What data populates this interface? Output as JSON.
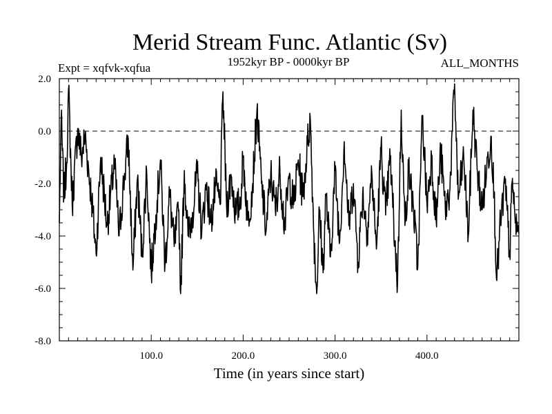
{
  "chart_data": {
    "type": "line",
    "title": "Merid Stream Func. Atlantic (Sv)",
    "subtitle_left": "Expt = xqfvk-xqfua",
    "subtitle_center": "1952kyr BP - 0000kyr BP",
    "subtitle_right": "ALL_MONTHS",
    "xlabel": "Time (in years since start)",
    "ylabel": "",
    "xlim": [
      0,
      500
    ],
    "ylim": [
      -8,
      2
    ],
    "xticks": [
      100,
      200,
      300,
      400
    ],
    "xtick_labels": [
      "100.0",
      "200.0",
      "300.0",
      "400.0"
    ],
    "yticks": [
      2,
      0,
      -2,
      -4,
      -6,
      -8
    ],
    "ytick_labels": [
      "2.0",
      "0.0",
      "-2.0",
      "-4.0",
      "-6.0",
      "-8.0"
    ],
    "reference_line": 0,
    "key_points": [
      [
        0,
        -3.5
      ],
      [
        2,
        0.5
      ],
      [
        5,
        -2.5
      ],
      [
        8,
        -1.2
      ],
      [
        10,
        1.6
      ],
      [
        14,
        -2.8
      ],
      [
        20,
        0.1
      ],
      [
        24,
        -1.0
      ],
      [
        28,
        -0.2
      ],
      [
        35,
        -2.5
      ],
      [
        40,
        -4.7
      ],
      [
        45,
        -1.0
      ],
      [
        52,
        -3.6
      ],
      [
        60,
        -1.2
      ],
      [
        65,
        -4.0
      ],
      [
        70,
        -2.0
      ],
      [
        75,
        -0.3
      ],
      [
        80,
        -5.3
      ],
      [
        85,
        -1.8
      ],
      [
        90,
        -4.8
      ],
      [
        95,
        -1.5
      ],
      [
        100,
        -5.4
      ],
      [
        105,
        -3.2
      ],
      [
        110,
        -1.1
      ],
      [
        115,
        -5.1
      ],
      [
        120,
        -2.4
      ],
      [
        125,
        -4.4
      ],
      [
        130,
        -3.0
      ],
      [
        132,
        -6.2
      ],
      [
        136,
        -1.5
      ],
      [
        140,
        -4.0
      ],
      [
        145,
        -3.1
      ],
      [
        150,
        -1.6
      ],
      [
        155,
        -3.8
      ],
      [
        160,
        -2.0
      ],
      [
        165,
        -3.5
      ],
      [
        170,
        -2.1
      ],
      [
        175,
        -2.8
      ],
      [
        178,
        1.5
      ],
      [
        182,
        -2.9
      ],
      [
        187,
        -1.7
      ],
      [
        192,
        -3.2
      ],
      [
        197,
        -2.6
      ],
      [
        200,
        -1.0
      ],
      [
        205,
        -3.4
      ],
      [
        210,
        -2.2
      ],
      [
        215,
        0.8
      ],
      [
        220,
        -2.0
      ],
      [
        225,
        -3.8
      ],
      [
        230,
        -1.6
      ],
      [
        235,
        -3.0
      ],
      [
        240,
        -1.5
      ],
      [
        245,
        -3.6
      ],
      [
        250,
        -1.8
      ],
      [
        255,
        -2.8
      ],
      [
        260,
        -1.1
      ],
      [
        265,
        -2.5
      ],
      [
        270,
        -0.5
      ],
      [
        273,
        0.5
      ],
      [
        277,
        -4.0
      ],
      [
        280,
        -6.2
      ],
      [
        283,
        -3.0
      ],
      [
        287,
        -5.4
      ],
      [
        290,
        -2.4
      ],
      [
        295,
        -4.8
      ],
      [
        300,
        -1.5
      ],
      [
        305,
        -4.2
      ],
      [
        310,
        -0.4
      ],
      [
        315,
        -3.6
      ],
      [
        320,
        -2.0
      ],
      [
        325,
        -5.0
      ],
      [
        330,
        -2.4
      ],
      [
        335,
        -3.8
      ],
      [
        340,
        -1.6
      ],
      [
        345,
        -4.5
      ],
      [
        350,
        -0.6
      ],
      [
        355,
        -3.2
      ],
      [
        360,
        -1.0
      ],
      [
        365,
        -4.2
      ],
      [
        368,
        -5.8
      ],
      [
        372,
        0.8
      ],
      [
        376,
        -3.6
      ],
      [
        380,
        -1.5
      ],
      [
        385,
        -2.8
      ],
      [
        390,
        -5.2
      ],
      [
        395,
        0.6
      ],
      [
        400,
        -2.8
      ],
      [
        405,
        -1.0
      ],
      [
        410,
        -3.4
      ],
      [
        415,
        -0.8
      ],
      [
        420,
        -3.0
      ],
      [
        425,
        -2.2
      ],
      [
        430,
        1.8
      ],
      [
        434,
        -2.6
      ],
      [
        440,
        -1.0
      ],
      [
        445,
        -4.0
      ],
      [
        450,
        0.8
      ],
      [
        455,
        -1.6
      ],
      [
        460,
        -3.0
      ],
      [
        465,
        -1.4
      ],
      [
        470,
        -0.2
      ],
      [
        473,
        -2.4
      ],
      [
        476,
        -5.7
      ],
      [
        480,
        -3.5
      ],
      [
        485,
        -2.0
      ],
      [
        490,
        -4.7
      ],
      [
        493,
        -1.8
      ],
      [
        496,
        -3.5
      ],
      [
        500,
        -3.9
      ]
    ]
  }
}
